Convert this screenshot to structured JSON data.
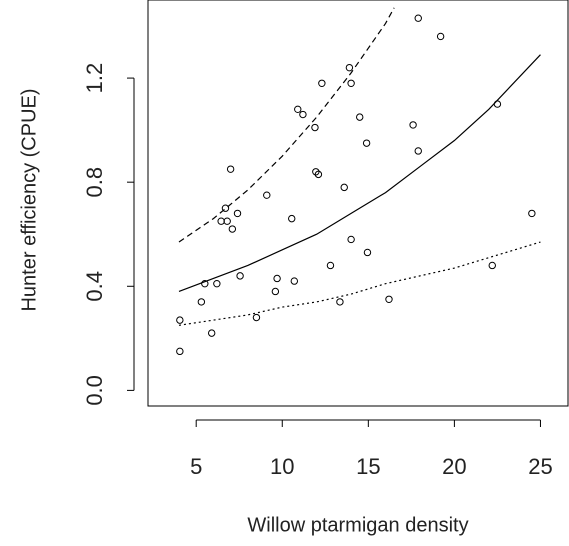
{
  "chart_data": {
    "type": "scatter",
    "x_label": "Willow ptarmigan density",
    "y_label": "Hunter efficiency (CPUE)",
    "xlim": [
      2.2,
      26.6
    ],
    "ylim": [
      -0.06,
      1.5
    ],
    "xticks": [
      5,
      10,
      15,
      20,
      25
    ],
    "yticks": [
      {
        "value": 0,
        "label": "0.0"
      },
      0.4,
      0.8,
      1.2
    ],
    "color": "#000000",
    "points": {
      "x": [
        4.05,
        4.05,
        5.3,
        5.5,
        5.9,
        6.2,
        6.45,
        6.7,
        6.8,
        7.0,
        7.1,
        7.4,
        7.55,
        8.5,
        9.1,
        9.6,
        9.7,
        10.55,
        10.7,
        10.9,
        11.2,
        11.9,
        11.95,
        12.1,
        12.3,
        12.8,
        13.35,
        13.6,
        13.9,
        14.0,
        14.0,
        14.5,
        14.9,
        14.95,
        16.2,
        17.6,
        17.9,
        17.9,
        19.2,
        22.2,
        22.5,
        24.5
      ],
      "y": [
        0.15,
        0.27,
        0.34,
        0.41,
        0.22,
        0.41,
        0.65,
        0.7,
        0.65,
        0.85,
        0.62,
        0.68,
        0.44,
        0.28,
        0.75,
        0.38,
        0.43,
        0.66,
        0.42,
        1.08,
        1.06,
        1.01,
        0.84,
        0.83,
        1.18,
        0.48,
        0.34,
        0.78,
        1.24,
        1.18,
        0.58,
        1.05,
        0.95,
        0.53,
        0.35,
        1.02,
        0.92,
        1.43,
        1.36,
        0.48,
        1.1,
        0.68
      ]
    },
    "curves": [
      {
        "dash": "solid",
        "x": [
          4,
          6,
          8,
          10,
          12,
          14,
          16,
          18,
          20,
          22,
          25
        ],
        "y": [
          0.38,
          0.43,
          0.48,
          0.54,
          0.6,
          0.68,
          0.76,
          0.86,
          0.96,
          1.08,
          1.29
        ]
      },
      {
        "dash": "dashed",
        "x": [
          4,
          6,
          8,
          10,
          12,
          14,
          16,
          16.5
        ],
        "y": [
          0.57,
          0.66,
          0.77,
          0.9,
          1.05,
          1.22,
          1.41,
          1.47
        ]
      },
      {
        "dash": "dotted",
        "x": [
          4,
          6,
          8,
          10,
          12,
          14,
          16,
          18,
          20,
          22,
          25
        ],
        "y": [
          0.25,
          0.27,
          0.29,
          0.32,
          0.34,
          0.37,
          0.41,
          0.44,
          0.47,
          0.51,
          0.57
        ]
      }
    ]
  }
}
